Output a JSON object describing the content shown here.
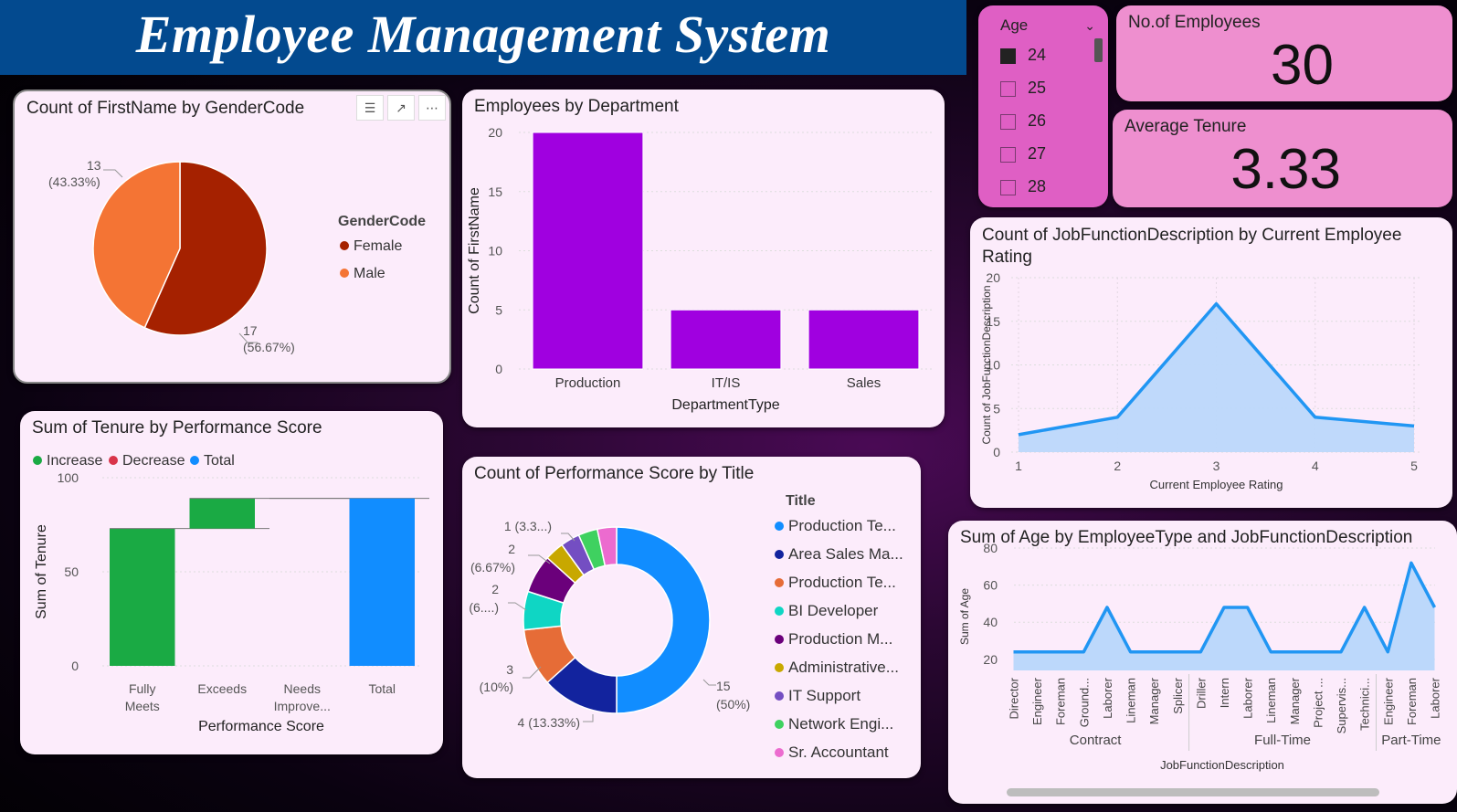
{
  "header": {
    "title": "Employee Management System"
  },
  "slicer": {
    "title": "Age",
    "options": [
      {
        "label": "24",
        "checked": true
      },
      {
        "label": "25",
        "checked": false
      },
      {
        "label": "26",
        "checked": false
      },
      {
        "label": "27",
        "checked": false
      },
      {
        "label": "28",
        "checked": false
      }
    ]
  },
  "kpis": {
    "employees": {
      "label": "No.of Employees",
      "value": "30"
    },
    "tenure": {
      "label": "Average Tenure",
      "value": "3.33"
    }
  },
  "chart_data": [
    {
      "id": "gender",
      "type": "pie",
      "title": "Count of FirstName by GenderCode",
      "legend_title": "GenderCode",
      "slices": [
        {
          "label": "Female",
          "value": 17,
          "pct": "(56.67%)",
          "color": "#a52100"
        },
        {
          "label": "Male",
          "value": 13,
          "pct": "(43.33%)",
          "color": "#f47434"
        }
      ]
    },
    {
      "id": "dept",
      "type": "bar",
      "title": "Employees by Department",
      "xlabel": "DepartmentType",
      "ylabel": "Count of FirstName",
      "categories": [
        "Production",
        "IT/IS",
        "Sales"
      ],
      "values": [
        20,
        5,
        5
      ],
      "ylim": [
        0,
        20
      ],
      "yticks": [
        0,
        5,
        10,
        15,
        20
      ],
      "color": "#a000e0"
    },
    {
      "id": "rating",
      "type": "area",
      "title": "Count of JobFunctionDescription by Current Employee Rating",
      "xlabel": "Current Employee Rating",
      "ylabel": "Count of JobFunctionDescription",
      "x": [
        1,
        2,
        3,
        4,
        5
      ],
      "values": [
        2,
        4,
        17,
        4,
        3
      ],
      "ylim": [
        0,
        20
      ],
      "yticks": [
        0,
        5,
        10,
        15,
        20
      ],
      "color": "#2196f3"
    },
    {
      "id": "waterfall",
      "type": "bar",
      "title": "Sum of Tenure by Performance Score",
      "xlabel": "Performance Score",
      "ylabel": "Sum of Tenure",
      "legend": [
        {
          "label": "Increase",
          "color": "#1aaa44"
        },
        {
          "label": "Decrease",
          "color": "#d9344a"
        },
        {
          "label": "Total",
          "color": "#118dff"
        }
      ],
      "steps": [
        {
          "label1": "Fully",
          "label2": "Meets",
          "start": 0,
          "end": 73,
          "kind": "increase"
        },
        {
          "label1": "Exceeds",
          "label2": "",
          "start": 73,
          "end": 89,
          "kind": "increase"
        },
        {
          "label1": "Needs",
          "label2": "Improve...",
          "start": 89,
          "end": 89,
          "kind": "increase"
        },
        {
          "label1": "Total",
          "label2": "",
          "start": 0,
          "end": 89,
          "kind": "total"
        }
      ],
      "ylim": [
        0,
        100
      ],
      "yticks": [
        0,
        50,
        100
      ]
    },
    {
      "id": "title_donut",
      "type": "pie",
      "title": "Count of Performance Score by Title",
      "legend_title": "Title",
      "slices": [
        {
          "label": "Production Te...",
          "value": 15,
          "text1": "15",
          "text2": "(50%)",
          "color": "#118dff"
        },
        {
          "label": "Area Sales Ma...",
          "value": 4,
          "text1": "4 (13.33%)",
          "text2": "",
          "color": "#12239e"
        },
        {
          "label": "Production Te...",
          "value": 3,
          "text1": "3",
          "text2": "(10%)",
          "color": "#e66c37"
        },
        {
          "label": "BI Developer",
          "value": 2,
          "text1": "2",
          "text2": "(6....)",
          "color": "#0fd6c4"
        },
        {
          "label": "Production M...",
          "value": 2,
          "text1": "2",
          "text2": "(6.67%)",
          "color": "#6b007b"
        },
        {
          "label": "Administrative...",
          "value": 1,
          "text1": "1 (3.3...)",
          "text2": "",
          "color": "#c8a800"
        },
        {
          "label": "IT Support",
          "value": 1,
          "text1": "",
          "text2": "",
          "color": "#744ec2"
        },
        {
          "label": "Network Engi...",
          "value": 1,
          "text1": "",
          "text2": "",
          "color": "#3fd160"
        },
        {
          "label": "Sr. Accountant",
          "value": 1,
          "text1": "",
          "text2": "",
          "color": "#ec6bcf"
        }
      ]
    },
    {
      "id": "age",
      "type": "area",
      "title": "Sum of Age by EmployeeType and JobFunctionDescription",
      "xlabel": "JobFunctionDescription",
      "ylabel": "Sum of Age",
      "groups": [
        {
          "name": "Contract",
          "categories": [
            "Director",
            "Engineer",
            "Foreman",
            "Ground...",
            "Laborer",
            "Lineman",
            "Manager",
            "Splicer"
          ],
          "values": [
            24,
            24,
            24,
            24,
            48,
            24,
            24,
            24
          ]
        },
        {
          "name": "Full-Time",
          "categories": [
            "Driller",
            "Intern",
            "Laborer",
            "Lineman",
            "Manager",
            "Project ...",
            "Supervis...",
            "Technici..."
          ],
          "values": [
            24,
            48,
            48,
            24,
            24,
            24,
            24,
            48
          ]
        },
        {
          "name": "Part-Time",
          "categories": [
            "Engineer",
            "Foreman",
            "Laborer"
          ],
          "values": [
            24,
            72,
            48
          ]
        }
      ],
      "ylim": [
        14,
        82
      ],
      "yticks": [
        20,
        40,
        60,
        80
      ],
      "color": "#2196f3"
    }
  ]
}
